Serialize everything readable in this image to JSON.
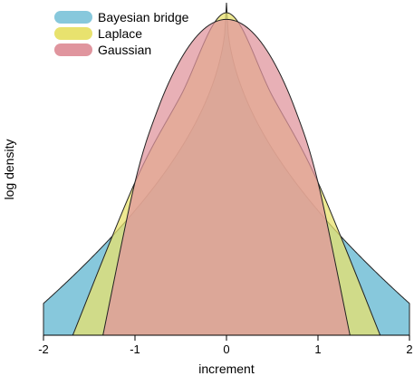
{
  "chart_data": {
    "type": "area",
    "title": "",
    "xlabel": "increment",
    "ylabel": "log density",
    "xlim": [
      -2,
      2
    ],
    "x_ticks": [
      -2,
      -1,
      0,
      1,
      2
    ],
    "y_ticks_shown": false,
    "grid": false,
    "legend_position": "top-left",
    "series": [
      {
        "name": "Bayesian bridge",
        "color": "#87c8dc",
        "x": [
          -2,
          -1.5,
          -1,
          -0.75,
          -0.5,
          -0.25,
          -0.1,
          0,
          0.1,
          0.25,
          0.5,
          0.75,
          1,
          1.5,
          2
        ],
        "values": [
          0.19,
          0.33,
          0.46,
          0.53,
          0.6,
          0.66,
          0.74,
          1.0,
          0.74,
          0.66,
          0.6,
          0.53,
          0.46,
          0.33,
          0.19
        ]
      },
      {
        "name": "Laplace",
        "color": "#e8e26e",
        "x": [
          -1.68,
          -1,
          -0.5,
          0,
          0.5,
          1,
          1.68
        ],
        "values": [
          0.0,
          0.46,
          0.72,
          0.97,
          0.72,
          0.46,
          0.0
        ]
      },
      {
        "name": "Gaussian",
        "color": "#e0959e",
        "x": [
          -1.35,
          -1.0,
          -0.75,
          -0.5,
          -0.25,
          0,
          0.25,
          0.5,
          0.75,
          1.0,
          1.35
        ],
        "values": [
          0.0,
          0.46,
          0.68,
          0.83,
          0.92,
          0.95,
          0.92,
          0.83,
          0.68,
          0.46,
          0.0
        ]
      }
    ]
  },
  "legend": {
    "items": [
      "Bayesian bridge",
      "Laplace",
      "Gaussian"
    ]
  }
}
